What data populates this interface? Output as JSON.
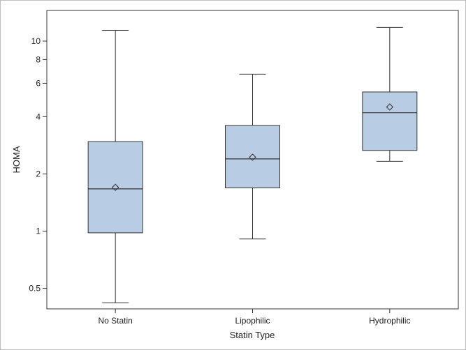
{
  "chart_data": {
    "type": "box",
    "title": "",
    "xlabel": "Statin Type",
    "ylabel": "HOMA",
    "y_scale": "log",
    "ylim": [
      0.39,
      14.5
    ],
    "y_ticks": [
      0.5,
      1,
      2,
      4,
      6,
      8,
      10
    ],
    "y_tick_labels": [
      "0.5",
      "1",
      "2",
      "4",
      "6",
      "8",
      "10"
    ],
    "grid": false,
    "legend": "none",
    "categories": [
      "No Statin",
      "Lipophilic",
      "Hydrophilic"
    ],
    "box_color": "#b8cce4",
    "line_color": "#333333",
    "boxes": [
      {
        "category": "No Statin",
        "whisker_low": 0.42,
        "q1": 0.98,
        "median": 1.67,
        "q3": 2.96,
        "whisker_high": 11.4,
        "mean": 1.7
      },
      {
        "category": "Lipophilic",
        "whisker_low": 0.91,
        "q1": 1.69,
        "median": 2.4,
        "q3": 3.6,
        "whisker_high": 6.7,
        "mean": 2.45
      },
      {
        "category": "Hydrophilic",
        "whisker_low": 2.33,
        "q1": 2.66,
        "median": 4.2,
        "q3": 5.4,
        "whisker_high": 11.8,
        "mean": 4.5
      }
    ]
  }
}
